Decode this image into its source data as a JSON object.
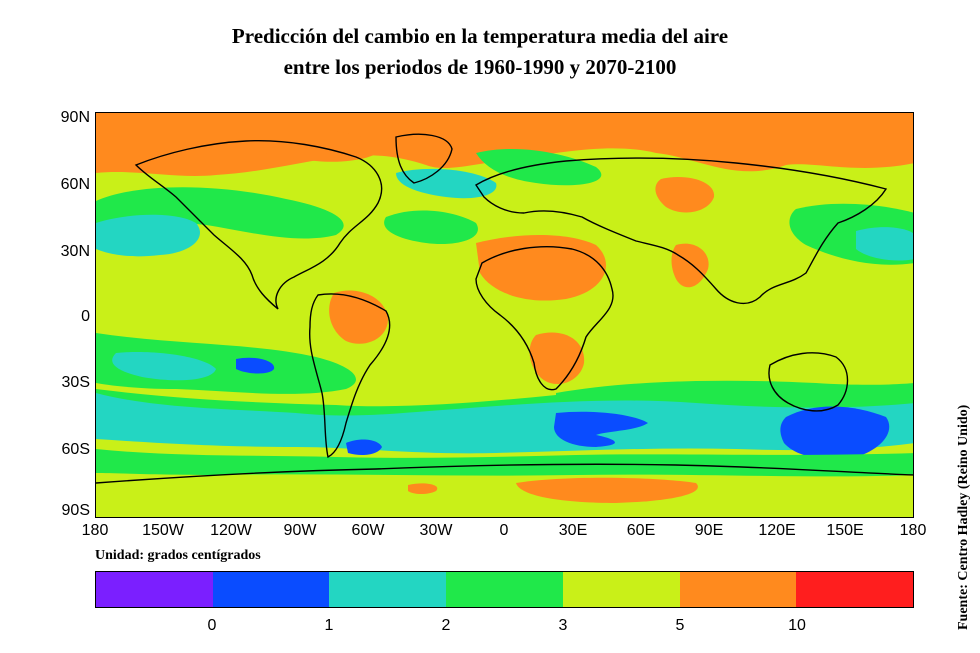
{
  "title": {
    "line1": "Predicción del cambio en la temperatura media del aire",
    "line2": "entre los periodos de 1960-1990 y 2070-2100"
  },
  "lat_labels": [
    "90N",
    "60N",
    "30N",
    "0",
    "30S",
    "60S",
    "90S"
  ],
  "lon_labels": [
    "180",
    "150W",
    "120W",
    "90W",
    "60W",
    "30W",
    "0",
    "30E",
    "60E",
    "90E",
    "120E",
    "150E",
    "180"
  ],
  "unit_label": "Unidad: grados centígrados",
  "legend": {
    "colors": [
      "#7b1fff",
      "#0a4cff",
      "#23d6c2",
      "#20e84a",
      "#c9f018",
      "#ff8a1e",
      "#ff1e1e"
    ],
    "ticks": [
      "0",
      "1",
      "2",
      "3",
      "5",
      "10"
    ]
  },
  "source": "Fuente: Centro Hadley (Reino Unido)"
}
